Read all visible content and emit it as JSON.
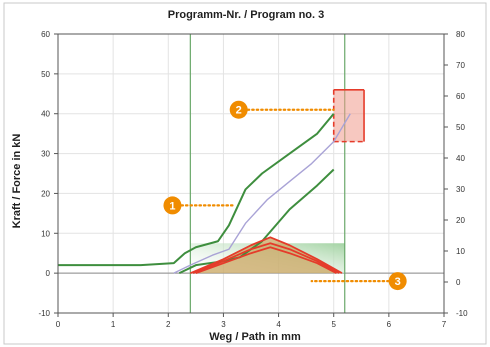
{
  "chart_data": {
    "type": "line",
    "title": "Programm-Nr. / Program no. 3",
    "xlabel": "Weg / Path in mm",
    "ylabel": "Kraft / Force in kN",
    "xlim": [
      0,
      7
    ],
    "ylim": [
      -10,
      60
    ],
    "right_ylim": [
      -10,
      80
    ],
    "x_ticks": [
      0,
      1,
      2,
      3,
      4,
      5,
      6,
      7
    ],
    "y_ticks": [
      -10,
      0,
      10,
      20,
      30,
      40,
      50,
      60
    ],
    "right_y_ticks": [
      -10,
      0,
      10,
      20,
      30,
      40,
      50,
      60,
      70,
      80
    ],
    "grid": true,
    "vertical_markers": [
      2.4,
      5.2
    ],
    "series": [
      {
        "style": "envelope-upper",
        "color": "#3e8e3e",
        "x": [
          0,
          1.5,
          2.1,
          2.3,
          2.5,
          2.9,
          3.1,
          3.4,
          3.7,
          4.2,
          4.7,
          5.0
        ],
        "y": [
          2,
          2,
          2.5,
          5,
          6.5,
          8,
          12,
          21,
          25,
          30,
          35,
          40
        ]
      },
      {
        "style": "envelope-lower",
        "color": "#3e8e3e",
        "x": [
          2.2,
          2.5,
          3.0,
          3.3,
          3.7,
          4.2,
          4.7,
          5.0
        ],
        "y": [
          0,
          2,
          3,
          4,
          8,
          16,
          22,
          26
        ]
      },
      {
        "style": "measured-curve",
        "color": "#a9a3d6",
        "x": [
          2.1,
          2.4,
          2.8,
          3.1,
          3.4,
          3.8,
          4.2,
          4.6,
          5.0,
          5.3
        ],
        "y": [
          0,
          2,
          4.5,
          6,
          12.5,
          18.5,
          23,
          27.5,
          33,
          40
        ]
      },
      {
        "style": "hysteresis-outer",
        "color": "#e53b2a",
        "x": [
          2.4,
          3.0,
          3.5,
          3.85,
          4.2,
          4.7,
          5.15
        ],
        "y": [
          0,
          3.5,
          7,
          9,
          7,
          3.5,
          0
        ]
      },
      {
        "style": "hysteresis-inner",
        "color": "#e53b2a",
        "x": [
          2.45,
          3.0,
          3.5,
          3.85,
          4.2,
          4.7,
          5.1
        ],
        "y": [
          0,
          3,
          6,
          7.5,
          6,
          3,
          0
        ]
      },
      {
        "style": "hysteresis-inner2",
        "color": "#e53b2a",
        "x": [
          2.5,
          3.0,
          3.5,
          3.85,
          4.2,
          4.7,
          5.05
        ],
        "y": [
          0,
          2.5,
          5,
          6.5,
          5,
          2.5,
          0
        ]
      }
    ],
    "green_band": {
      "x": [
        2.4,
        5.2
      ],
      "y": [
        0,
        7.5
      ],
      "color": "#9fd19f"
    },
    "red_window": {
      "x": [
        5.0,
        5.55
      ],
      "y": [
        33,
        46
      ],
      "color": "#f19a8c"
    },
    "callouts": [
      {
        "label": "1",
        "target_x": 3.2,
        "target_y": 17
      },
      {
        "label": "2",
        "target_x": 5.0,
        "target_y": 41
      },
      {
        "label": "3",
        "target_x": 4.6,
        "target_y": -2
      }
    ]
  }
}
